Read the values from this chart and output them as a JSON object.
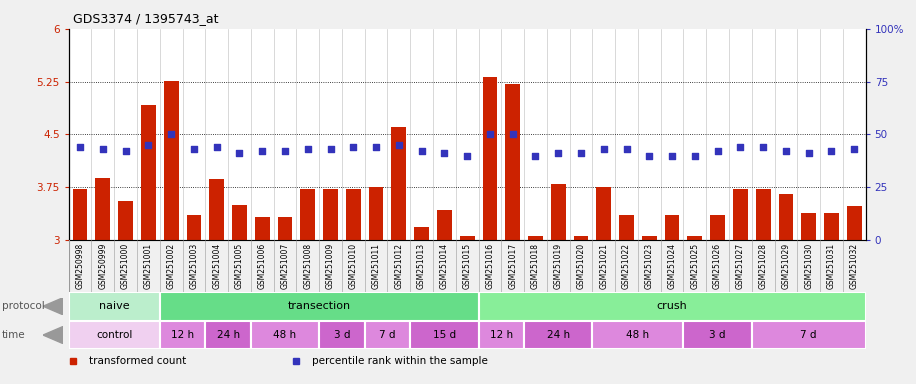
{
  "title": "GDS3374 / 1395743_at",
  "samples": [
    "GSM250998",
    "GSM250999",
    "GSM251000",
    "GSM251001",
    "GSM251002",
    "GSM251003",
    "GSM251004",
    "GSM251005",
    "GSM251006",
    "GSM251007",
    "GSM251008",
    "GSM251009",
    "GSM251010",
    "GSM251011",
    "GSM251012",
    "GSM251013",
    "GSM251014",
    "GSM251015",
    "GSM251016",
    "GSM251017",
    "GSM251018",
    "GSM251019",
    "GSM251020",
    "GSM251021",
    "GSM251022",
    "GSM251023",
    "GSM251024",
    "GSM251025",
    "GSM251026",
    "GSM251027",
    "GSM251028",
    "GSM251029",
    "GSM251030",
    "GSM251031",
    "GSM251032"
  ],
  "transformed_count": [
    3.72,
    3.88,
    3.55,
    4.92,
    5.26,
    3.35,
    3.87,
    3.5,
    3.32,
    3.32,
    3.72,
    3.72,
    3.72,
    3.75,
    4.6,
    3.18,
    3.42,
    3.05,
    5.32,
    5.22,
    3.05,
    3.8,
    3.05,
    3.75,
    3.35,
    3.05,
    3.35,
    3.05,
    3.35,
    3.72,
    3.72,
    3.65,
    3.38,
    3.38,
    3.48
  ],
  "percentile_rank": [
    44,
    43,
    42,
    45,
    50,
    43,
    44,
    41,
    42,
    42,
    43,
    43,
    44,
    44,
    45,
    42,
    41,
    40,
    50,
    50,
    40,
    41,
    41,
    43,
    43,
    40,
    40,
    40,
    42,
    44,
    44,
    42,
    41,
    42,
    43
  ],
  "ylim_left": [
    3.0,
    6.0
  ],
  "ylim_right": [
    0,
    100
  ],
  "yticks_left": [
    3.0,
    3.75,
    4.5,
    5.25,
    6.0
  ],
  "yticks_right": [
    0,
    25,
    50,
    75,
    100
  ],
  "ytick_labels_left": [
    "3",
    "3.75",
    "4.5",
    "5.25",
    "6"
  ],
  "ytick_labels_right": [
    "0",
    "25",
    "50",
    "75",
    "100%"
  ],
  "hlines": [
    3.75,
    4.5,
    5.25
  ],
  "bar_color": "#cc2200",
  "dot_color": "#3333bb",
  "bar_width": 0.65,
  "protocol_bands": [
    {
      "label": "naive",
      "start": 0,
      "end": 4,
      "color": "#bbeecc"
    },
    {
      "label": "transection",
      "start": 4,
      "end": 18,
      "color": "#66dd88"
    },
    {
      "label": "crush",
      "start": 18,
      "end": 35,
      "color": "#88ee99"
    }
  ],
  "time_bands": [
    {
      "label": "control",
      "start": 0,
      "end": 4,
      "color": "#f0d0f0"
    },
    {
      "label": "12 h",
      "start": 4,
      "end": 6,
      "color": "#dd88dd"
    },
    {
      "label": "24 h",
      "start": 6,
      "end": 8,
      "color": "#cc66cc"
    },
    {
      "label": "48 h",
      "start": 8,
      "end": 11,
      "color": "#dd88dd"
    },
    {
      "label": "3 d",
      "start": 11,
      "end": 13,
      "color": "#cc66cc"
    },
    {
      "label": "7 d",
      "start": 13,
      "end": 15,
      "color": "#dd88dd"
    },
    {
      "label": "15 d",
      "start": 15,
      "end": 18,
      "color": "#cc66cc"
    },
    {
      "label": "12 h",
      "start": 18,
      "end": 20,
      "color": "#dd88dd"
    },
    {
      "label": "24 h",
      "start": 20,
      "end": 23,
      "color": "#cc66cc"
    },
    {
      "label": "48 h",
      "start": 23,
      "end": 27,
      "color": "#dd88dd"
    },
    {
      "label": "3 d",
      "start": 27,
      "end": 30,
      "color": "#cc66cc"
    },
    {
      "label": "7 d",
      "start": 30,
      "end": 35,
      "color": "#dd88dd"
    }
  ],
  "legend_items": [
    {
      "label": "transformed count",
      "color": "#cc2200"
    },
    {
      "label": "percentile rank within the sample",
      "color": "#3333bb"
    }
  ],
  "fig_bg": "#f0f0f0",
  "plot_bg": "#ffffff",
  "xlabel_bg": "#cccccc"
}
